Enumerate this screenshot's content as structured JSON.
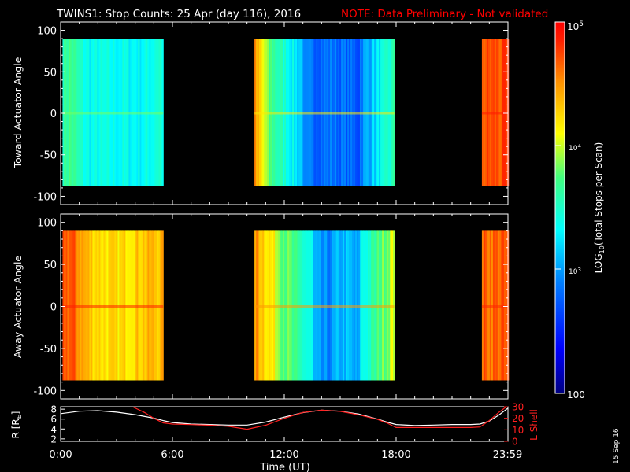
{
  "title": {
    "main": "TWINS1: Stop Counts: 25 Apr (day 116), 2016",
    "note": "NOTE: Data Preliminary - Not validated"
  },
  "stamp": "15 Sep 16",
  "colors": {
    "background": "#000000",
    "text": "#ffffff",
    "note": "#ff0000",
    "r_line": "#ffffff",
    "lshell_line": "#ff2020"
  },
  "chart_data": [
    {
      "type": "heatmap",
      "panel": "top",
      "ylabel": "Toward Actuator Angle",
      "ylim": [
        -110,
        110
      ],
      "yticks": [
        100,
        50,
        0,
        -50,
        -100
      ],
      "ytick_labels": [
        "100",
        "50",
        "0",
        "-50",
        "-100"
      ],
      "x_range_hours": [
        0,
        24
      ],
      "data_y_range": [
        -88,
        90
      ],
      "colorscale": "log10 counts, 100 to 1e5",
      "segments": [
        {
          "start_hour": 0.1,
          "end_hour": 5.5,
          "description": "yellow-green to cyan, approx log10 3.2-3.9"
        },
        {
          "start_hour": 10.4,
          "end_hour": 17.9,
          "description": "orange at start to deep blue near 13:00-16:00, approx log10 2.6-4.6"
        },
        {
          "start_hour": 22.6,
          "end_hour": 24.0,
          "description": "orange-red, approx log10 4.5-4.9"
        }
      ]
    },
    {
      "type": "heatmap",
      "panel": "middle",
      "ylabel": "Away Actuator Angle",
      "ylim": [
        -110,
        110
      ],
      "yticks": [
        100,
        50,
        0,
        -50,
        -100
      ],
      "ytick_labels": [
        "100",
        "50",
        "0",
        "-50",
        "-100"
      ],
      "x_range_hours": [
        0,
        24
      ],
      "data_y_range": [
        -88,
        90
      ],
      "segments": [
        {
          "start_hour": 0.1,
          "end_hour": 5.5,
          "description": "orange-red to yellow, approx log10 4.0-4.8"
        },
        {
          "start_hour": 10.4,
          "end_hour": 17.9,
          "description": "orange at start to blue near 14:00-16:00, approx log10 2.8-4.6"
        },
        {
          "start_hour": 22.6,
          "end_hour": 24.0,
          "description": "orange-red with cyan streaks, approx log10 4.4-4.9"
        }
      ]
    },
    {
      "type": "line",
      "panel": "bottom",
      "xlabel": "Time (UT)",
      "xlim": [
        0,
        24
      ],
      "xticks": [
        0,
        6,
        12,
        18,
        23.98
      ],
      "xtick_labels": [
        "0:00",
        "6:00",
        "12:00",
        "18:00",
        "23:59"
      ],
      "y_left": {
        "label": "R [RE]",
        "label_parts": {
          "main": "R [R",
          "sub": "E",
          "end": "]"
        },
        "ylim": [
          1.5,
          8.5
        ],
        "yticks": [
          2,
          4,
          6,
          8
        ],
        "ytick_labels": [
          "2",
          "4",
          "6",
          "8"
        ]
      },
      "y_right": {
        "label": "L Shell",
        "ylim": [
          0,
          30
        ],
        "yticks": [
          0,
          10,
          20,
          30
        ],
        "ytick_labels": [
          "0",
          "10",
          "20",
          "30"
        ]
      },
      "series": [
        {
          "axis": "left",
          "x": [
            0.0,
            1.0,
            2.0,
            3.0,
            4.0,
            5.0,
            5.5,
            6.0,
            7.0,
            8.0,
            9.0,
            10.0,
            11.0,
            12.0,
            13.0,
            14.0,
            15.0,
            16.0,
            17.0,
            17.5,
            18.0,
            19.0,
            20.0,
            21.0,
            22.0,
            22.5,
            23.0,
            23.5,
            24.0
          ],
          "y": [
            7.1,
            7.6,
            7.7,
            7.4,
            6.9,
            6.2,
            5.7,
            5.3,
            5.0,
            4.9,
            4.8,
            4.8,
            5.4,
            6.4,
            7.3,
            7.8,
            7.6,
            7.0,
            6.0,
            5.4,
            4.9,
            4.7,
            4.8,
            4.9,
            4.9,
            5.0,
            5.6,
            6.8,
            8.2
          ]
        },
        {
          "axis": "right",
          "x": [
            3.85,
            4.5,
            5.0,
            5.5,
            6.0,
            7.0,
            8.0,
            9.0,
            10.0,
            11.0,
            12.0,
            13.0,
            14.0,
            15.0,
            16.0,
            17.0,
            17.5,
            18.0,
            19.0,
            20.0,
            21.0,
            22.0,
            22.5,
            23.0,
            23.5,
            24.0
          ],
          "y": [
            30,
            25,
            20,
            16,
            15,
            14.5,
            14,
            13,
            10.5,
            14,
            20,
            25,
            27,
            26,
            23,
            19,
            16,
            12,
            12,
            12,
            12,
            12,
            12.5,
            18,
            25,
            31
          ]
        }
      ]
    }
  ],
  "colorbar": {
    "label_prefix": "LOG",
    "label_sub": "10",
    "label_suffix": "(Total Stops per Scan)",
    "tick_labels": {
      "t100": "100",
      "t1e3_base": "10",
      "t1e3_exp": "3",
      "t1e4_base": "10",
      "t1e4_exp": "4",
      "t1e5_base": "10",
      "t1e5_exp": "5"
    },
    "range_log10": [
      2,
      5
    ]
  }
}
